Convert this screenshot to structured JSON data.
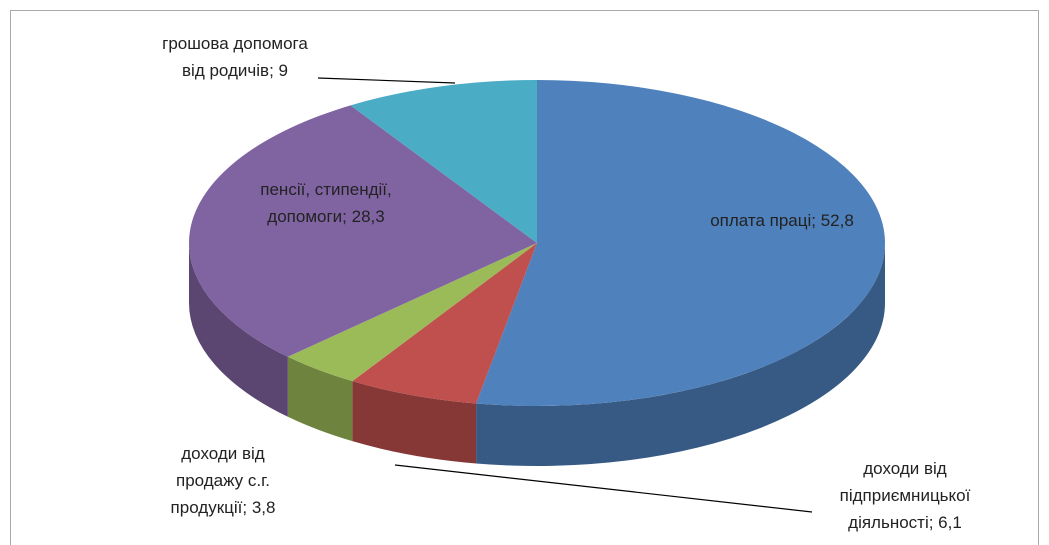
{
  "chart_data": {
    "type": "pie",
    "three_d": true,
    "values": [
      52.8,
      6.1,
      3.8,
      28.3,
      9
    ],
    "value_labels": [
      "оплата праці; 52,8",
      "доходи від підприємницької діяльності; 6,1",
      "доходи від продажу с.г. продукції; 3,8",
      "пенсії, стипендії, допомоги; 28,3",
      "грошова допомога від родичів; 9"
    ],
    "colors": [
      "#4f81bd",
      "#c0504d",
      "#9bbb59",
      "#8064a2",
      "#4bacc6"
    ]
  }
}
